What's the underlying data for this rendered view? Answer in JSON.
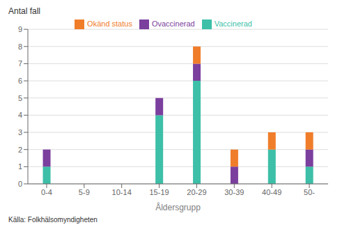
{
  "chart_data": {
    "type": "bar",
    "stacked": true,
    "categories": [
      "0-4",
      "5-9",
      "10-14",
      "15-19",
      "20-29",
      "30-39",
      "40-49",
      "50-"
    ],
    "series": [
      {
        "name": "Vaccinerad",
        "color": "#3dbfa8",
        "values": [
          1,
          0,
          0,
          4,
          6,
          0,
          2,
          1
        ]
      },
      {
        "name": "Ovaccinerad",
        "color": "#7b3f9e",
        "values": [
          1,
          0,
          0,
          1,
          1,
          1,
          0,
          1
        ]
      },
      {
        "name": "Okänd status",
        "color": "#f07d2a",
        "values": [
          0,
          0,
          0,
          0,
          1,
          1,
          1,
          1
        ]
      }
    ],
    "x_label": "Åldersgrupp",
    "y_label": "Antal fall",
    "ylim": [
      0,
      9
    ],
    "yticks": [
      0,
      1,
      2,
      3,
      4,
      5,
      6,
      7,
      8,
      9
    ],
    "grid": true,
    "legend": "top",
    "annotations": [
      "Källa: Folkhälsomyndigheten"
    ]
  }
}
